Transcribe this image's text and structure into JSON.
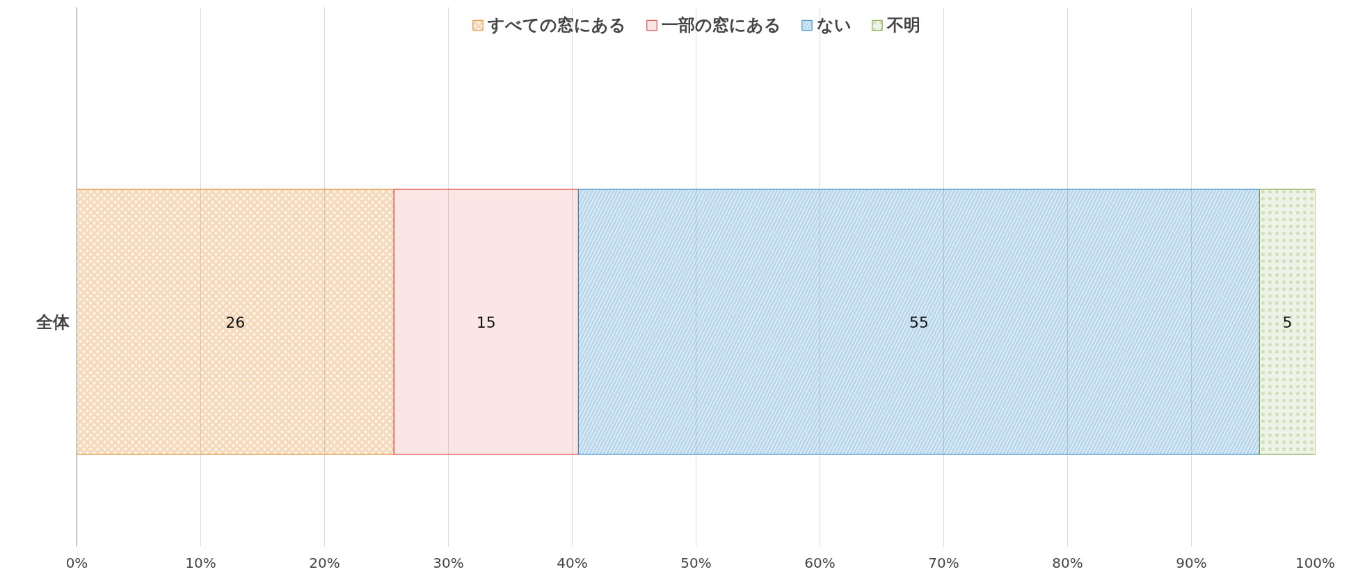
{
  "chart_data": {
    "type": "bar",
    "orientation": "horizontal",
    "stacked": true,
    "categories": [
      "全体"
    ],
    "series": [
      {
        "name": "すべての窓にある",
        "color": "#e08a2e",
        "values": [
          25.6
        ]
      },
      {
        "name": "一部の窓にある",
        "color": "#e03535",
        "values": [
          14.9
        ]
      },
      {
        "name": "ない",
        "color": "#2e86c8",
        "values": [
          55.0
        ]
      },
      {
        "name": "不明",
        "color": "#77a03a",
        "values": [
          4.5
        ]
      }
    ],
    "value_labels": [
      [
        "26"
      ],
      [
        "15"
      ],
      [
        "55"
      ],
      [
        "5"
      ]
    ],
    "xlim": [
      0,
      100
    ],
    "xticks": [
      {
        "value": 0,
        "label": "0%"
      },
      {
        "value": 10,
        "label": "10%"
      },
      {
        "value": 20,
        "label": "20%"
      },
      {
        "value": 30,
        "label": "30%"
      },
      {
        "value": 40,
        "label": "40%"
      },
      {
        "value": 50,
        "label": "50%"
      },
      {
        "value": 60,
        "label": "60%"
      },
      {
        "value": 70,
        "label": "70%"
      },
      {
        "value": 80,
        "label": "80%"
      },
      {
        "value": 90,
        "label": "90%"
      },
      {
        "value": 100,
        "label": "100%"
      }
    ],
    "grid": "x",
    "legend": "top"
  }
}
